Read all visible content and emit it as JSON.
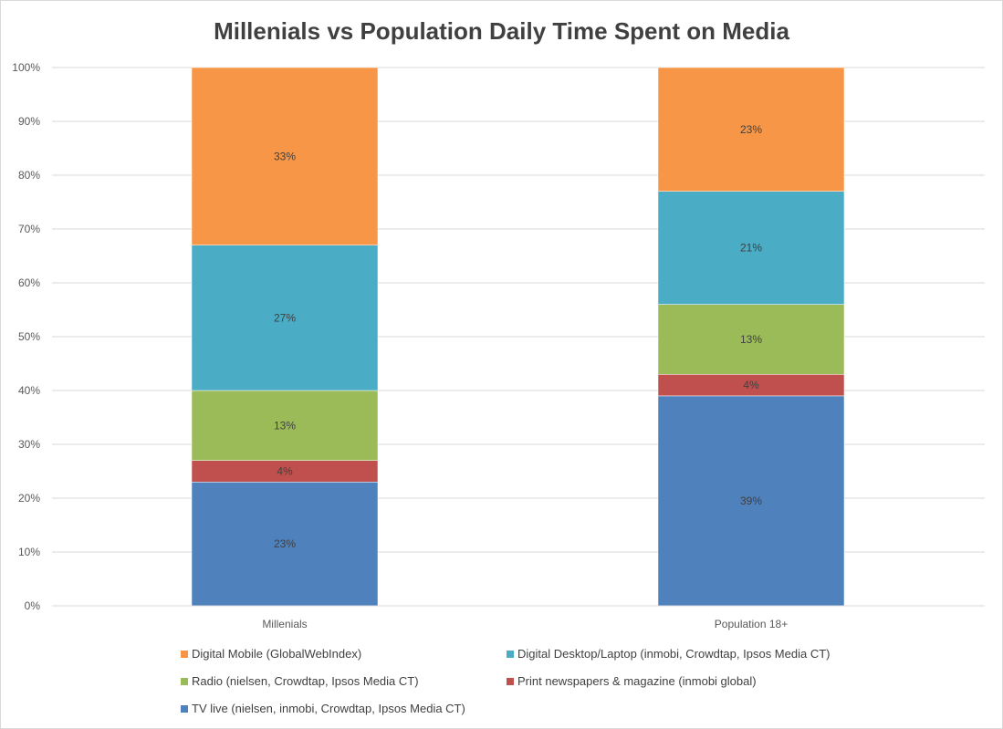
{
  "chart_data": {
    "type": "bar",
    "stacked": true,
    "percent": true,
    "title": "Millenials vs Population Daily Time Spent on Media",
    "categories": [
      "Millenials",
      "Population 18+"
    ],
    "ylim": [
      0,
      100
    ],
    "yticks": [
      "0%",
      "10%",
      "20%",
      "30%",
      "40%",
      "50%",
      "60%",
      "70%",
      "80%",
      "90%",
      "100%"
    ],
    "grid": true,
    "legend_position": "bottom",
    "series": [
      {
        "name": "TV live (nielsen, inmobi, Crowdtap, Ipsos Media CT)",
        "color": "#4f81bd",
        "values": [
          23,
          39
        ],
        "labels": [
          "23%",
          "39%"
        ]
      },
      {
        "name": "Print newspapers & magazine (inmobi global)",
        "color": "#c0504d",
        "values": [
          4,
          4
        ],
        "labels": [
          "4%",
          "4%"
        ]
      },
      {
        "name": "Radio (nielsen, Crowdtap, Ipsos Media CT)",
        "color": "#9bbb59",
        "values": [
          13,
          13
        ],
        "labels": [
          "13%",
          "13%"
        ]
      },
      {
        "name": "Digital Desktop/Laptop (inmobi, Crowdtap, Ipsos Media CT)",
        "color": "#4bacc6",
        "values": [
          27,
          21
        ],
        "labels": [
          "27%",
          "21%"
        ]
      },
      {
        "name": "Digital Mobile (GlobalWebIndex)",
        "color": "#f79646",
        "values": [
          33,
          23
        ],
        "labels": [
          "33%",
          "23%"
        ]
      }
    ],
    "legend_order": [
      4,
      3,
      2,
      1,
      0
    ]
  }
}
